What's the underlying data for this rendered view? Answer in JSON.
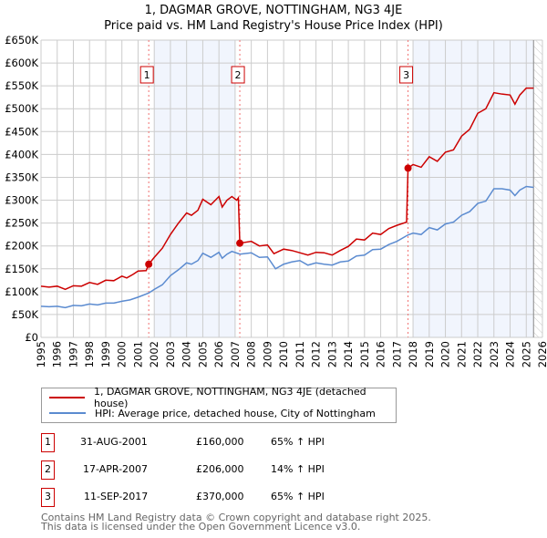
{
  "title_line1": "1, DAGMAR GROVE, NOTTINGHAM, NG3 4JE",
  "title_line2": "Price paid vs. HM Land Registry's House Price Index (HPI)",
  "chart_data": {
    "type": "line",
    "title": "Price paid vs. HM Land Registry's House Price Index (HPI)",
    "xlim": [
      1995,
      2026
    ],
    "ylim": [
      0,
      650000
    ],
    "x_ticks": [
      "1995",
      "1996",
      "1997",
      "1998",
      "1999",
      "2000",
      "2001",
      "2002",
      "2003",
      "2004",
      "2005",
      "2006",
      "2007",
      "2008",
      "2009",
      "2010",
      "2011",
      "2012",
      "2013",
      "2014",
      "2015",
      "2016",
      "2017",
      "2018",
      "2019",
      "2020",
      "2021",
      "2022",
      "2023",
      "2024",
      "2025",
      "2026"
    ],
    "y_ticks": [
      {
        "v": 0,
        "label": "£0"
      },
      {
        "v": 50000,
        "label": "£50K"
      },
      {
        "v": 100000,
        "label": "£100K"
      },
      {
        "v": 150000,
        "label": "£150K"
      },
      {
        "v": 200000,
        "label": "£200K"
      },
      {
        "v": 250000,
        "label": "£250K"
      },
      {
        "v": 300000,
        "label": "£300K"
      },
      {
        "v": 350000,
        "label": "£350K"
      },
      {
        "v": 400000,
        "label": "£400K"
      },
      {
        "v": 450000,
        "label": "£450K"
      },
      {
        "v": 500000,
        "label": "£500K"
      },
      {
        "v": 550000,
        "label": "£550K"
      },
      {
        "v": 600000,
        "label": "£600K"
      },
      {
        "v": 650000,
        "label": "£650K"
      }
    ],
    "grid": true,
    "shaded_ranges": [
      [
        2002.0,
        2007.0
      ],
      [
        2018.0,
        2025.45
      ]
    ],
    "forecast_hatch_from": 2025.45,
    "series": [
      {
        "name": "1, DAGMAR GROVE, NOTTINGHAM, NG3 4JE (detached house)",
        "color": "#cc0000",
        "points": [
          [
            1995,
            112
          ],
          [
            1995.5,
            110
          ],
          [
            1996,
            112
          ],
          [
            1996.5,
            105
          ],
          [
            1997,
            113
          ],
          [
            1997.5,
            112
          ],
          [
            1998,
            120
          ],
          [
            1998.5,
            116
          ],
          [
            1999,
            125
          ],
          [
            1999.5,
            124
          ],
          [
            2000,
            134
          ],
          [
            2000.3,
            130
          ],
          [
            2000.7,
            138
          ],
          [
            2001,
            145
          ],
          [
            2001.5,
            146
          ],
          [
            2001.66,
            160
          ],
          [
            2002,
            175
          ],
          [
            2002.5,
            195
          ],
          [
            2003,
            225
          ],
          [
            2003.5,
            250
          ],
          [
            2004,
            272
          ],
          [
            2004.3,
            267
          ],
          [
            2004.7,
            278
          ],
          [
            2005,
            302
          ],
          [
            2005.5,
            290
          ],
          [
            2006,
            308
          ],
          [
            2006.2,
            285
          ],
          [
            2006.5,
            300
          ],
          [
            2006.8,
            308
          ],
          [
            2007.1,
            300
          ],
          [
            2007.2,
            305
          ],
          [
            2007.29,
            206
          ],
          [
            2008,
            210
          ],
          [
            2008.5,
            200
          ],
          [
            2009,
            202
          ],
          [
            2009.4,
            183
          ],
          [
            2010,
            193
          ],
          [
            2010.5,
            190
          ],
          [
            2011,
            185
          ],
          [
            2011.5,
            180
          ],
          [
            2012,
            186
          ],
          [
            2012.5,
            185
          ],
          [
            2013,
            180
          ],
          [
            2013.5,
            190
          ],
          [
            2014,
            199
          ],
          [
            2014.5,
            215
          ],
          [
            2015,
            213
          ],
          [
            2015.5,
            228
          ],
          [
            2016,
            225
          ],
          [
            2016.5,
            238
          ],
          [
            2017,
            245
          ],
          [
            2017.6,
            252
          ],
          [
            2017.69,
            370
          ],
          [
            2018,
            378
          ],
          [
            2018.5,
            372
          ],
          [
            2019,
            395
          ],
          [
            2019.5,
            385
          ],
          [
            2020,
            405
          ],
          [
            2020.5,
            410
          ],
          [
            2021,
            440
          ],
          [
            2021.5,
            455
          ],
          [
            2022,
            490
          ],
          [
            2022.5,
            500
          ],
          [
            2023,
            535
          ],
          [
            2023.5,
            532
          ],
          [
            2024,
            530
          ],
          [
            2024.3,
            510
          ],
          [
            2024.6,
            530
          ],
          [
            2025,
            545
          ],
          [
            2025.45,
            545
          ]
        ]
      },
      {
        "name": "HPI: Average price, detached house, City of Nottingham",
        "color": "#5b8bd0",
        "points": [
          [
            1995,
            68
          ],
          [
            1995.5,
            67
          ],
          [
            1996,
            68
          ],
          [
            1996.5,
            65
          ],
          [
            1997,
            70
          ],
          [
            1997.5,
            69
          ],
          [
            1998,
            73
          ],
          [
            1998.5,
            71
          ],
          [
            1999,
            75
          ],
          [
            1999.5,
            75
          ],
          [
            2000,
            79
          ],
          [
            2000.5,
            82
          ],
          [
            2001,
            88
          ],
          [
            2001.66,
            97
          ],
          [
            2002,
            105
          ],
          [
            2002.5,
            115
          ],
          [
            2003,
            135
          ],
          [
            2003.5,
            148
          ],
          [
            2004,
            163
          ],
          [
            2004.3,
            160
          ],
          [
            2004.7,
            168
          ],
          [
            2005,
            184
          ],
          [
            2005.5,
            175
          ],
          [
            2006,
            186
          ],
          [
            2006.2,
            173
          ],
          [
            2006.5,
            182
          ],
          [
            2006.8,
            188
          ],
          [
            2007.3,
            182
          ],
          [
            2008,
            185
          ],
          [
            2008.5,
            175
          ],
          [
            2009,
            176
          ],
          [
            2009.5,
            150
          ],
          [
            2010,
            160
          ],
          [
            2010.5,
            165
          ],
          [
            2011,
            168
          ],
          [
            2011.5,
            158
          ],
          [
            2012,
            163
          ],
          [
            2012.5,
            160
          ],
          [
            2013,
            158
          ],
          [
            2013.5,
            165
          ],
          [
            2014,
            167
          ],
          [
            2014.5,
            178
          ],
          [
            2015,
            180
          ],
          [
            2015.5,
            192
          ],
          [
            2016,
            193
          ],
          [
            2016.5,
            203
          ],
          [
            2017,
            210
          ],
          [
            2017.69,
            224
          ],
          [
            2018,
            228
          ],
          [
            2018.5,
            225
          ],
          [
            2019,
            240
          ],
          [
            2019.5,
            235
          ],
          [
            2020,
            248
          ],
          [
            2020.5,
            252
          ],
          [
            2021,
            267
          ],
          [
            2021.5,
            275
          ],
          [
            2022,
            293
          ],
          [
            2022.5,
            298
          ],
          [
            2023,
            325
          ],
          [
            2023.5,
            325
          ],
          [
            2024,
            322
          ],
          [
            2024.3,
            310
          ],
          [
            2024.6,
            322
          ],
          [
            2025,
            330
          ],
          [
            2025.45,
            328
          ]
        ]
      }
    ],
    "value_units": "thousands GBP",
    "sales": [
      {
        "label": "1",
        "x": 2001.66,
        "value": 160
      },
      {
        "label": "2",
        "x": 2007.29,
        "value": 206
      },
      {
        "label": "3",
        "x": 2017.69,
        "value": 370
      }
    ]
  },
  "legend": {
    "property": "1, DAGMAR GROVE, NOTTINGHAM, NG3 4JE (detached house)",
    "hpi": "HPI: Average price, detached house, City of Nottingham"
  },
  "transactions": [
    {
      "num": "1",
      "date": "31-AUG-2001",
      "price": "£160,000",
      "hpi": "65% ↑ HPI"
    },
    {
      "num": "2",
      "date": "17-APR-2007",
      "price": "£206,000",
      "hpi": "14% ↑ HPI"
    },
    {
      "num": "3",
      "date": "11-SEP-2017",
      "price": "£370,000",
      "hpi": "65% ↑ HPI"
    }
  ],
  "footer": {
    "line1": "Contains HM Land Registry data © Crown copyright and database right 2025.",
    "line2": "This data is licensed under the Open Government Licence v3.0."
  }
}
